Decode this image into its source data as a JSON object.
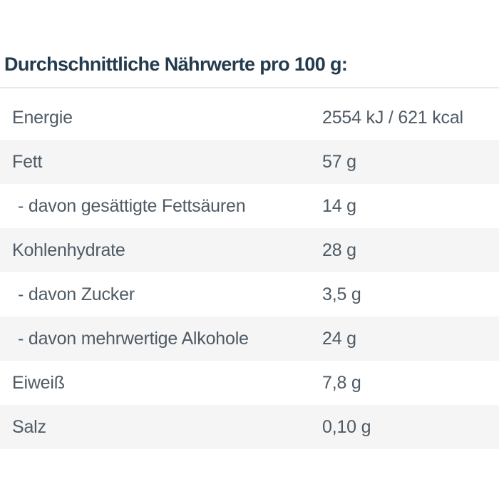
{
  "title": "Durchschnittliche Nährwerte pro 100 g:",
  "table": {
    "rows": [
      {
        "label": "Energie",
        "value": "2554 kJ / 621 kcal"
      },
      {
        "label": "Fett",
        "value": "57 g"
      },
      {
        "label": "- davon gesättigte Fettsäuren",
        "value": "14 g"
      },
      {
        "label": "Kohlenhydrate",
        "value": "28 g"
      },
      {
        "label": "- davon Zucker",
        "value": "3,5 g"
      },
      {
        "label": "- davon mehrwertige Alkohole",
        "value": "24 g"
      },
      {
        "label": "Eiweiß",
        "value": "7,8 g"
      },
      {
        "label": "Salz",
        "value": "0,10 g"
      }
    ]
  },
  "colors": {
    "title_text": "#233b4d",
    "row_text": "#4e5a64",
    "stripe_background": "#f5f5f6",
    "table_top_border": "#e7e9ea",
    "page_background": "#ffffff"
  }
}
